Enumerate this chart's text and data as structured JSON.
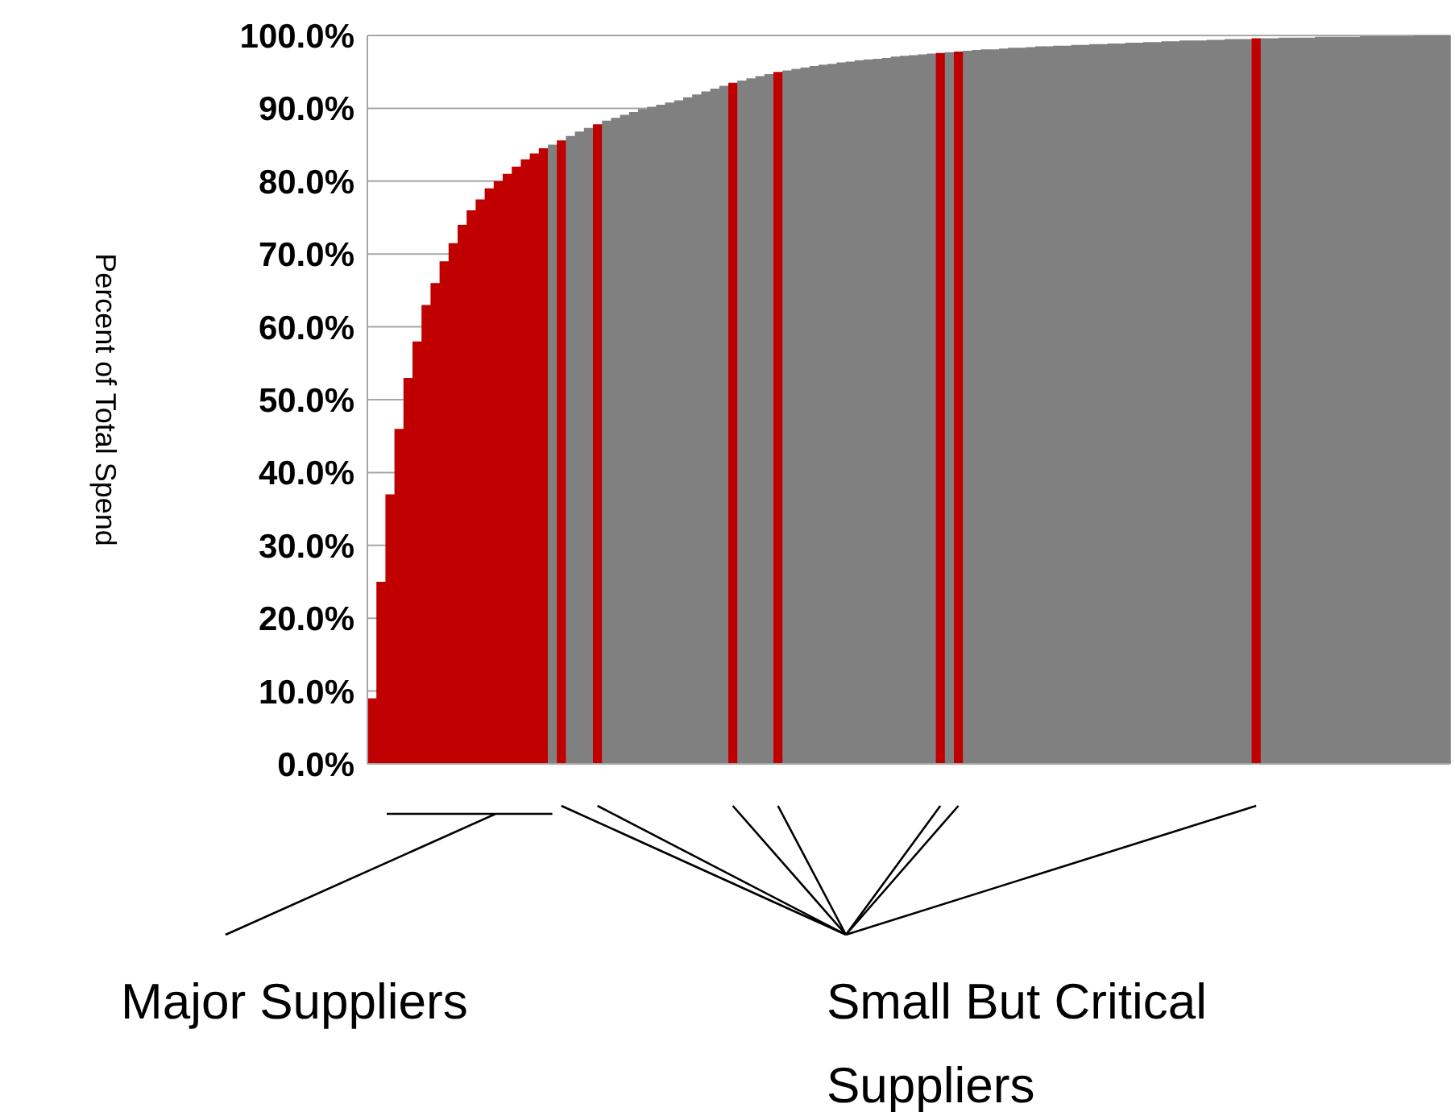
{
  "chart_data": {
    "type": "bar",
    "ylabel": "Percent of Total Spend",
    "categories": [
      null,
      null,
      null,
      null,
      null,
      null,
      null,
      null,
      null,
      null,
      null,
      null,
      null,
      null,
      null,
      null,
      null,
      null,
      null,
      null,
      null,
      null,
      null,
      null,
      null,
      null,
      null,
      null,
      null,
      null,
      null,
      null,
      null,
      null,
      null,
      null,
      null,
      null,
      null,
      null,
      null,
      null,
      null,
      null,
      null,
      null,
      null,
      null,
      null,
      null,
      null,
      null,
      null,
      null,
      null,
      null,
      null,
      null,
      null,
      null,
      null,
      null,
      null,
      null,
      null,
      null,
      null,
      null,
      null,
      null,
      null,
      null,
      null,
      null,
      null,
      null,
      null,
      null,
      null,
      null,
      null,
      null,
      null,
      null,
      null,
      null,
      null,
      null,
      null,
      null,
      null,
      null,
      null,
      null,
      null,
      null,
      null,
      null,
      null,
      null,
      null,
      null,
      null,
      null,
      null,
      null,
      null,
      null,
      null,
      null,
      null,
      null,
      null,
      null,
      null,
      null,
      null,
      null,
      null,
      null
    ],
    "values": [
      9,
      25,
      37,
      46,
      53,
      58,
      63,
      66,
      69,
      71.5,
      74,
      76,
      77.5,
      79,
      80,
      81,
      82,
      83,
      83.8,
      84.5,
      85,
      85.6,
      86.2,
      86.8,
      87.3,
      87.8,
      88.3,
      88.7,
      89.1,
      89.5,
      89.9,
      90.2,
      90.5,
      90.8,
      91.1,
      91.5,
      91.9,
      92.3,
      92.7,
      93.1,
      93.5,
      93.8,
      94.1,
      94.4,
      94.7,
      95,
      95.2,
      95.4,
      95.6,
      95.8,
      96,
      96.1,
      96.3,
      96.4,
      96.6,
      96.7,
      96.8,
      96.9,
      97.1,
      97.2,
      97.3,
      97.4,
      97.5,
      97.6,
      97.7,
      97.8,
      97.9,
      98,
      98.1,
      98.1,
      98.2,
      98.3,
      98.3,
      98.4,
      98.5,
      98.5,
      98.6,
      98.6,
      98.7,
      98.7,
      98.8,
      98.8,
      98.9,
      98.9,
      99,
      99,
      99.1,
      99.1,
      99.2,
      99.2,
      99.3,
      99.3,
      99.3,
      99.4,
      99.4,
      99.5,
      99.5,
      99.5,
      99.6,
      99.6,
      99.6,
      99.7,
      99.7,
      99.7,
      99.7,
      99.8,
      99.8,
      99.8,
      99.8,
      99.8,
      99.9,
      99.9,
      99.9,
      99.9,
      99.9,
      99.9,
      100,
      100,
      100,
      100
    ],
    "colors": [
      "#c00000",
      "#c00000",
      "#c00000",
      "#c00000",
      "#c00000",
      "#c00000",
      "#c00000",
      "#c00000",
      "#c00000",
      "#c00000",
      "#c00000",
      "#c00000",
      "#c00000",
      "#c00000",
      "#c00000",
      "#c00000",
      "#c00000",
      "#c00000",
      "#c00000",
      "#c00000",
      "#808080",
      "#c00000",
      "#808080",
      "#808080",
      "#808080",
      "#c00000",
      "#808080",
      "#808080",
      "#808080",
      "#808080",
      "#808080",
      "#808080",
      "#808080",
      "#808080",
      "#808080",
      "#808080",
      "#808080",
      "#808080",
      "#808080",
      "#808080",
      "#c00000",
      "#808080",
      "#808080",
      "#808080",
      "#808080",
      "#c00000",
      "#808080",
      "#808080",
      "#808080",
      "#808080",
      "#808080",
      "#808080",
      "#808080",
      "#808080",
      "#808080",
      "#808080",
      "#808080",
      "#808080",
      "#808080",
      "#808080",
      "#808080",
      "#808080",
      "#808080",
      "#c00000",
      "#808080",
      "#c00000",
      "#808080",
      "#808080",
      "#808080",
      "#808080",
      "#808080",
      "#808080",
      "#808080",
      "#808080",
      "#808080",
      "#808080",
      "#808080",
      "#808080",
      "#808080",
      "#808080",
      "#808080",
      "#808080",
      "#808080",
      "#808080",
      "#808080",
      "#808080",
      "#808080",
      "#808080",
      "#808080",
      "#808080",
      "#808080",
      "#808080",
      "#808080",
      "#808080",
      "#808080",
      "#808080",
      "#808080",
      "#808080",
      "#c00000",
      "#808080",
      "#808080",
      "#808080",
      "#808080",
      "#808080",
      "#808080",
      "#808080",
      "#808080",
      "#808080",
      "#808080",
      "#808080",
      "#808080",
      "#808080",
      "#808080",
      "#808080",
      "#808080",
      "#808080",
      "#808080",
      "#808080",
      "#808080",
      "#808080"
    ],
    "ylim": [
      0,
      100
    ],
    "yticks": [
      {
        "value": 0,
        "label": "0.0%"
      },
      {
        "value": 10,
        "label": "10.0%"
      },
      {
        "value": 20,
        "label": "20.0%"
      },
      {
        "value": 30,
        "label": "30.0%"
      },
      {
        "value": 40,
        "label": "40.0%"
      },
      {
        "value": 50,
        "label": "50.0%"
      },
      {
        "value": 60,
        "label": "60.0%"
      },
      {
        "value": 70,
        "label": "70.0%"
      },
      {
        "value": 80,
        "label": "80.0%"
      },
      {
        "value": 90,
        "label": "90.0%"
      },
      {
        "value": 100,
        "label": "100.0%"
      }
    ],
    "grid": "y",
    "tick_labels": "y",
    "annotations": [
      "Major Suppliers",
      "Small But Critical Suppliers"
    ]
  }
}
